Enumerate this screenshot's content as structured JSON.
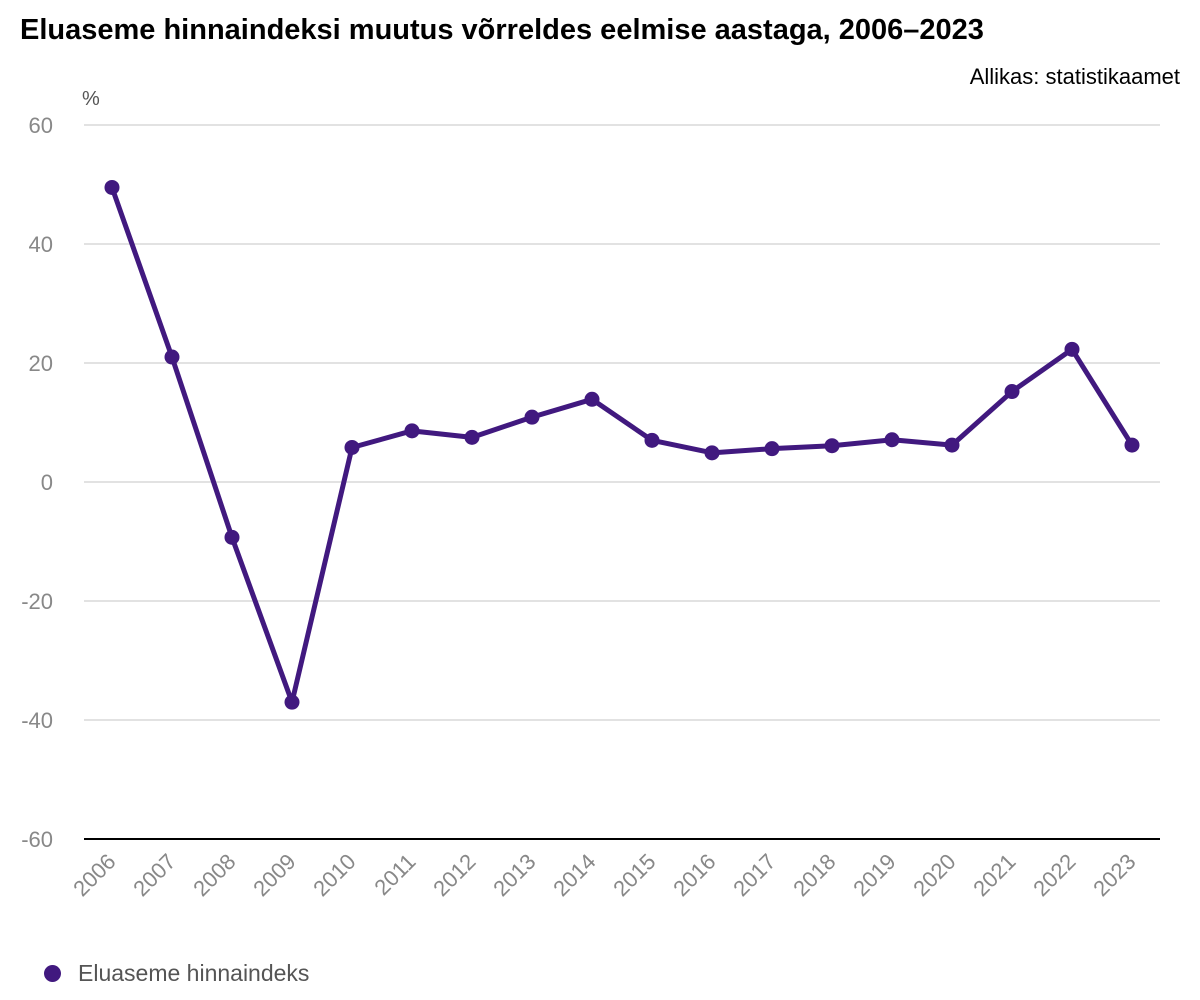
{
  "header": {
    "title": "Eluaseme hinnaindeksi muutus võrreldes eelmise aastaga, 2006–2023",
    "source": "Allikas: statistikaamet"
  },
  "colors": {
    "series": "#41197f",
    "grid": "#d9d9d9",
    "axis": "#000000",
    "tick_text": "#888888"
  },
  "chart_data": {
    "type": "line",
    "title": "Eluaseme hinnaindeksi muutus võrreldes eelmise aastaga, 2006–2023",
    "ylabel": "%",
    "ylim": [
      -60,
      60
    ],
    "yticks": [
      60,
      40,
      20,
      0,
      -20,
      -40,
      -60
    ],
    "grid": true,
    "legend_position": "bottom-left",
    "categories": [
      "2006",
      "2007",
      "2008",
      "2009",
      "2010",
      "2011",
      "2012",
      "2013",
      "2014",
      "2015",
      "2016",
      "2017",
      "2018",
      "2019",
      "2020",
      "2021",
      "2022",
      "2023"
    ],
    "series": [
      {
        "name": "Eluaseme hinnaindeks",
        "values": [
          49.5,
          21.0,
          -9.3,
          -37.0,
          5.8,
          8.6,
          7.5,
          10.9,
          13.9,
          7.0,
          4.9,
          5.6,
          6.1,
          7.1,
          6.2,
          15.2,
          22.3,
          6.2
        ]
      }
    ]
  }
}
